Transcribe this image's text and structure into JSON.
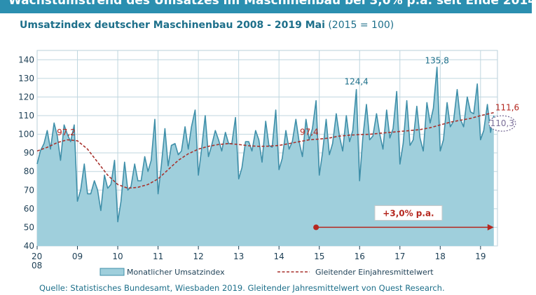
{
  "header": {
    "title": "Wachstumstrend des Umsatzes im Maschinenbau bei 3,0% p.a. seit Ende 2014"
  },
  "subtitle": {
    "main": "Umsatzindex deutscher Maschinenbau 2008 - 2019 Mai",
    "base": "(2015 = 100)"
  },
  "source": "Quelle: Statistisches Bundesamt, Wiesbaden 2019. Gleitender Jahresmittelwert von Quest Research.",
  "colors": {
    "header_bg": "#2b8fb0",
    "area_fill": "#9fcfdc",
    "area_stroke": "#3f8fa9",
    "moving_avg": "#a8322d",
    "text_blue": "#1d6f8a",
    "annotation_red": "#b5271f",
    "circle": "#7a6e98"
  },
  "chart_data": {
    "type": "area",
    "ylim": [
      40,
      145
    ],
    "yticks": [
      40,
      50,
      60,
      70,
      80,
      90,
      100,
      110,
      120,
      130,
      140
    ],
    "xlim": [
      2008.0,
      2019.42
    ],
    "xticks": [
      {
        "x": 2008,
        "label": "20"
      },
      {
        "x": 2009,
        "label": "09"
      },
      {
        "x": 2010,
        "label": "10"
      },
      {
        "x": 2011,
        "label": "11"
      },
      {
        "x": 2012,
        "label": "12"
      },
      {
        "x": 2013,
        "label": "13"
      },
      {
        "x": 2014,
        "label": "14"
      },
      {
        "x": 2015,
        "label": "15"
      },
      {
        "x": 2016,
        "label": "16"
      },
      {
        "x": 2017,
        "label": "17"
      },
      {
        "x": 2018,
        "label": "18"
      },
      {
        "x": 2019,
        "label": "19"
      }
    ],
    "xtick_sublabel": "08",
    "series": [
      {
        "name": "Monatlicher Umsatzindex",
        "type": "area",
        "x": [
          2008.0,
          2008.08,
          2008.17,
          2008.25,
          2008.33,
          2008.42,
          2008.5,
          2008.58,
          2008.67,
          2008.75,
          2008.83,
          2008.92,
          2009.0,
          2009.08,
          2009.17,
          2009.25,
          2009.33,
          2009.42,
          2009.5,
          2009.58,
          2009.67,
          2009.75,
          2009.83,
          2009.92,
          2010.0,
          2010.08,
          2010.17,
          2010.25,
          2010.33,
          2010.42,
          2010.5,
          2010.58,
          2010.67,
          2010.75,
          2010.83,
          2010.92,
          2011.0,
          2011.08,
          2011.17,
          2011.25,
          2011.33,
          2011.42,
          2011.5,
          2011.58,
          2011.67,
          2011.75,
          2011.83,
          2011.92,
          2012.0,
          2012.08,
          2012.17,
          2012.25,
          2012.33,
          2012.42,
          2012.5,
          2012.58,
          2012.67,
          2012.75,
          2012.83,
          2012.92,
          2013.0,
          2013.08,
          2013.17,
          2013.25,
          2013.33,
          2013.42,
          2013.5,
          2013.58,
          2013.67,
          2013.75,
          2013.83,
          2013.92,
          2014.0,
          2014.08,
          2014.17,
          2014.25,
          2014.33,
          2014.42,
          2014.5,
          2014.58,
          2014.67,
          2014.75,
          2014.83,
          2014.92,
          2015.0,
          2015.08,
          2015.17,
          2015.25,
          2015.33,
          2015.42,
          2015.5,
          2015.58,
          2015.67,
          2015.75,
          2015.83,
          2015.92,
          2016.0,
          2016.08,
          2016.17,
          2016.25,
          2016.33,
          2016.42,
          2016.5,
          2016.58,
          2016.67,
          2016.75,
          2016.83,
          2016.92,
          2017.0,
          2017.08,
          2017.17,
          2017.25,
          2017.33,
          2017.42,
          2017.5,
          2017.58,
          2017.67,
          2017.75,
          2017.83,
          2017.92,
          2018.0,
          2018.08,
          2018.17,
          2018.25,
          2018.33,
          2018.42,
          2018.5,
          2018.58,
          2018.67,
          2018.75,
          2018.83,
          2018.92,
          2019.0,
          2019.08,
          2019.17,
          2019.25,
          2019.33
        ],
        "values": [
          84,
          91,
          95,
          102,
          92,
          106,
          99,
          86,
          105,
          100,
          96,
          105,
          64,
          70,
          84,
          68,
          68,
          75,
          70,
          59,
          78,
          71,
          73,
          86,
          53,
          64,
          85,
          70,
          72,
          84,
          75,
          75,
          88,
          80,
          86,
          108,
          68,
          83,
          103,
          83,
          94,
          95,
          89,
          91,
          104,
          92,
          104,
          113,
          78,
          92,
          110,
          88,
          94,
          102,
          97,
          91,
          101,
          95,
          95,
          109,
          76,
          82,
          96,
          96,
          91,
          102,
          97,
          85,
          107,
          94,
          93,
          113,
          81,
          87,
          102,
          92,
          96,
          108,
          96,
          88,
          108,
          97,
          103,
          118,
          78,
          90,
          108,
          89,
          95,
          111,
          99,
          91,
          110,
          96,
          102,
          124,
          75,
          98,
          116,
          97,
          99,
          111,
          100,
          92,
          113,
          98,
          103,
          123,
          84,
          95,
          118,
          94,
          97,
          115,
          98,
          91,
          117,
          106,
          114,
          136,
          91,
          97,
          117,
          104,
          107,
          124,
          108,
          104,
          120,
          112,
          111,
          127,
          97,
          102,
          116,
          101,
          110
        ]
      },
      {
        "name": "Gleitender Einjahresmittelwert",
        "type": "line",
        "x": [
          2008.0,
          2008.25,
          2008.5,
          2008.75,
          2009.0,
          2009.25,
          2009.5,
          2009.75,
          2010.0,
          2010.25,
          2010.5,
          2010.75,
          2011.0,
          2011.25,
          2011.5,
          2011.75,
          2012.0,
          2012.25,
          2012.5,
          2012.75,
          2013.0,
          2013.25,
          2013.5,
          2013.75,
          2014.0,
          2014.25,
          2014.5,
          2014.75,
          2015.0,
          2015.25,
          2015.5,
          2015.75,
          2016.0,
          2016.25,
          2016.5,
          2016.75,
          2017.0,
          2017.25,
          2017.5,
          2017.75,
          2018.0,
          2018.25,
          2018.5,
          2018.75,
          2019.0,
          2019.33
        ],
        "values": [
          91,
          93,
          95.5,
          97,
          96.5,
          92,
          85,
          78,
          73,
          71,
          71.5,
          73,
          76,
          81,
          86,
          89.5,
          92,
          93.5,
          94.5,
          95,
          94.5,
          93.8,
          93.5,
          93.6,
          94,
          95,
          96,
          97,
          97.4,
          98,
          99,
          99.5,
          99.8,
          100,
          100.5,
          101,
          101.5,
          102,
          102.5,
          103.5,
          105,
          106.5,
          107.5,
          108.5,
          110,
          111.6
        ]
      }
    ],
    "annotations": [
      {
        "x": 2008.72,
        "y": 97.2,
        "text": "97,2",
        "color": "red"
      },
      {
        "x": 2014.75,
        "y": 97.4,
        "text": "97,4",
        "color": "red"
      },
      {
        "x": 2015.92,
        "y": 124.4,
        "text": "124,4",
        "color": "blue"
      },
      {
        "x": 2017.92,
        "y": 135.8,
        "text": "135,8",
        "color": "blue"
      },
      {
        "x": 2019.33,
        "y": 111.6,
        "text": "111,6",
        "color": "red"
      },
      {
        "x": 2019.33,
        "y": 110.3,
        "text": "110,3",
        "color": "circle"
      }
    ],
    "trend_arrow": {
      "x_start": 2014.92,
      "x_end": 2019.33,
      "y": 50,
      "label": "+3,0% p.a."
    },
    "legend": {
      "placement": "bottom"
    }
  }
}
